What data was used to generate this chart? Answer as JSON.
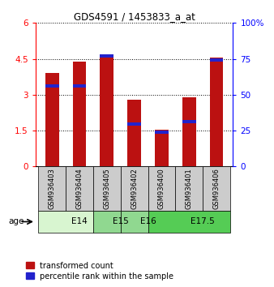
{
  "title": "GDS4591 / 1453833_a_at",
  "samples": [
    "GSM936403",
    "GSM936404",
    "GSM936405",
    "GSM936402",
    "GSM936400",
    "GSM936401",
    "GSM936406"
  ],
  "red_heights": [
    3.9,
    4.4,
    4.65,
    2.8,
    1.55,
    2.9,
    4.55
  ],
  "blue_bottoms": [
    3.3,
    3.3,
    4.55,
    1.7,
    1.38,
    1.8,
    4.38
  ],
  "blue_heights": [
    0.13,
    0.13,
    0.13,
    0.13,
    0.13,
    0.13,
    0.13
  ],
  "ylim_left": [
    0,
    6
  ],
  "ylim_right": [
    0,
    100
  ],
  "yticks_left": [
    0,
    1.5,
    3,
    4.5,
    6
  ],
  "ytick_labels_left": [
    "0",
    "1.5",
    "3",
    "4.5",
    "6"
  ],
  "yticks_right": [
    0,
    25,
    50,
    75,
    100
  ],
  "ytick_labels_right": [
    "0",
    "25",
    "50",
    "75",
    "100%"
  ],
  "age_groups": [
    {
      "label": "E14",
      "start": 0,
      "end": 2,
      "color": "#d8f5d0"
    },
    {
      "label": "E15",
      "start": 2,
      "end": 3,
      "color": "#90d890"
    },
    {
      "label": "E16",
      "start": 3,
      "end": 4,
      "color": "#90d890"
    },
    {
      "label": "E17.5",
      "start": 4,
      "end": 7,
      "color": "#55cc55"
    }
  ],
  "bar_color": "#bb1111",
  "blue_color": "#2222cc",
  "bar_width": 0.5,
  "bg_plot": "#ffffff",
  "bg_label": "#cccccc",
  "legend_red_label": "transformed count",
  "legend_blue_label": "percentile rank within the sample",
  "age_label": "age"
}
